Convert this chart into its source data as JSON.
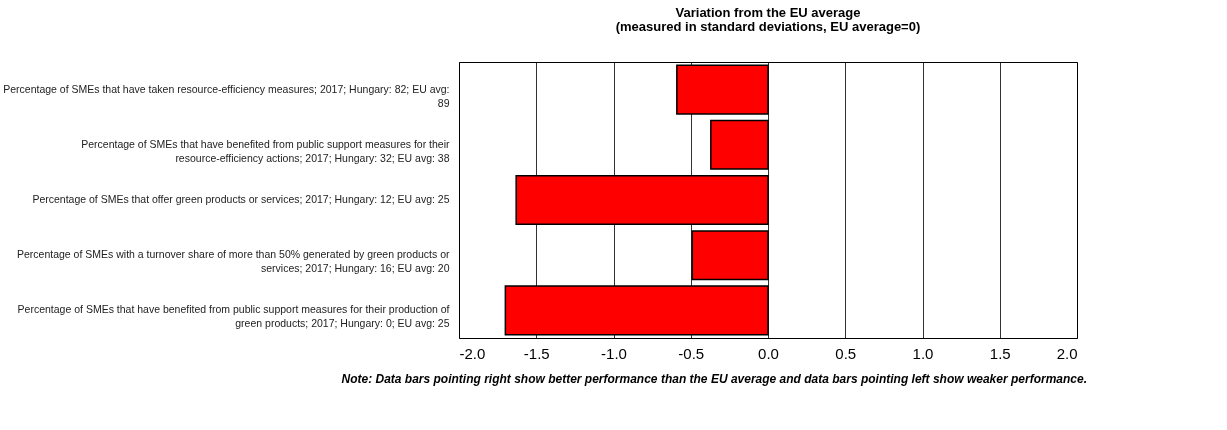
{
  "chart_data": {
    "type": "bar",
    "orientation": "horizontal",
    "title": "Variation from the EU average",
    "subtitle": "(measured in standard deviations, EU average=0)",
    "categories": [
      "Percentage of SMEs that have taken resource-efficiency measures; 2017; Hungary: 82; EU avg: 89",
      "Percentage of SMEs that have benefited from public support measures for their resource-efficiency actions; 2017; Hungary: 32; EU avg: 38",
      "Percentage of SMEs that offer green products or services; 2017; Hungary: 12; EU avg: 25",
      "Percentage of SMEs with a turnover share of more than 50% generated by green products or services; 2017; Hungary: 16; EU avg: 20",
      "Percentage of SMEs that have benefited from public support measures for their production of green products; 2017; Hungary: 0; EU avg: 25"
    ],
    "values": [
      -0.59,
      -0.37,
      -1.63,
      -0.49,
      -1.7
    ],
    "color": "#ff0000",
    "xlim": [
      -2.0,
      2.0
    ],
    "xticks": [
      {
        "value": -2,
        "label": "-2.0"
      },
      {
        "value": -1.5,
        "label": "-1.5"
      },
      {
        "value": -1,
        "label": "-1.0"
      },
      {
        "value": -0.5,
        "label": "-0.5"
      },
      {
        "value": 0,
        "label": "0.0"
      },
      {
        "value": 0.5,
        "label": "0.5"
      },
      {
        "value": 1,
        "label": "1.0"
      },
      {
        "value": 1.5,
        "label": "1.5"
      },
      {
        "value": 2,
        "label": "2.0"
      }
    ],
    "grid": "x",
    "annotations": [
      "Note: Data bars pointing right show better performance than the EU average and data bars pointing left show weaker performance."
    ]
  }
}
